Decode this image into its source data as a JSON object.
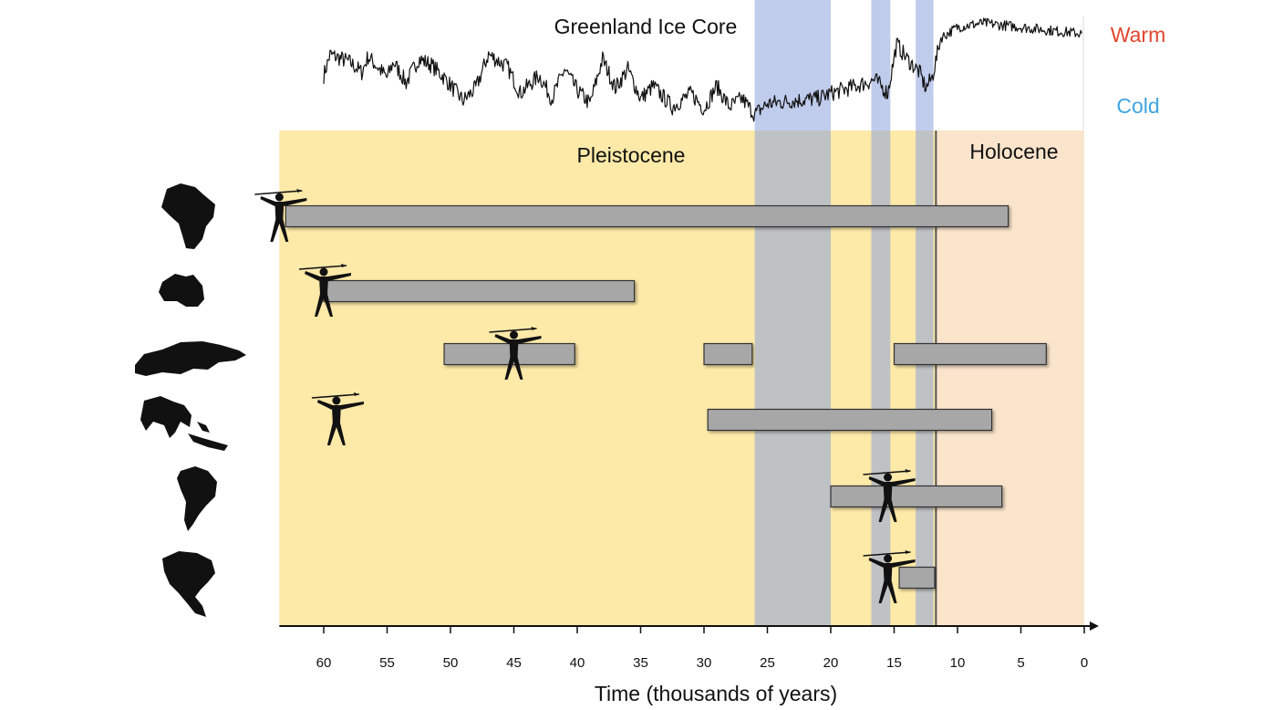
{
  "chart_data": {
    "type": "bar",
    "orientation": "horizontal-range",
    "ice_core_title": "Greenland Ice Core",
    "warm_label": "Warm",
    "cold_label": "Cold",
    "period_labels": {
      "pleistocene": "Pleistocene",
      "holocene": "Holocene"
    },
    "xlabel": "Time (thousands of years)",
    "xlim": [
      63.5,
      0
    ],
    "xticks": [
      60,
      55,
      50,
      45,
      40,
      35,
      30,
      25,
      20,
      15,
      10,
      5,
      0
    ],
    "x_reversed": true,
    "periods": [
      {
        "name": "Pleistocene",
        "start": 63.5,
        "end": 11.7
      },
      {
        "name": "Holocene",
        "start": 11.7,
        "end": 0
      }
    ],
    "cold_bands": [
      [
        26,
        20
      ],
      [
        16.8,
        15.3
      ],
      [
        13.3,
        11.9
      ]
    ],
    "continents": [
      {
        "icon": "africa-icon",
        "ranges": [
          [
            63,
            6
          ]
        ],
        "human_arrival": 63.5
      },
      {
        "icon": "australia-icon",
        "ranges": [
          [
            60,
            35.5
          ]
        ],
        "human_arrival": 60
      },
      {
        "icon": "eurasia-icon",
        "ranges": [
          [
            50.5,
            40.2
          ],
          [
            30,
            26.2
          ],
          [
            15,
            3
          ]
        ],
        "human_arrival": 45
      },
      {
        "icon": "south-asia-icon",
        "ranges": [
          [
            29.7,
            7.3
          ]
        ],
        "human_arrival": 59
      },
      {
        "icon": "south-america-icon",
        "ranges": [
          [
            20,
            6.5
          ]
        ],
        "human_arrival": 15.5
      },
      {
        "icon": "north-america-icon",
        "ranges": [
          [
            14.6,
            11.8
          ]
        ],
        "human_arrival": 15.5
      }
    ],
    "ice_core_anchors": [
      [
        60,
        0.42
      ],
      [
        59.5,
        0.62
      ],
      [
        58,
        0.55
      ],
      [
        57,
        0.45
      ],
      [
        56.5,
        0.6
      ],
      [
        55,
        0.4
      ],
      [
        54.5,
        0.55
      ],
      [
        53.5,
        0.35
      ],
      [
        52.5,
        0.58
      ],
      [
        51.5,
        0.52
      ],
      [
        50.5,
        0.4
      ],
      [
        49,
        0.18
      ],
      [
        48,
        0.3
      ],
      [
        47,
        0.62
      ],
      [
        45.5,
        0.5
      ],
      [
        44.5,
        0.25
      ],
      [
        43,
        0.42
      ],
      [
        42,
        0.2
      ],
      [
        41,
        0.48
      ],
      [
        40,
        0.28
      ],
      [
        39,
        0.15
      ],
      [
        38,
        0.58
      ],
      [
        37,
        0.3
      ],
      [
        36,
        0.48
      ],
      [
        35,
        0.2
      ],
      [
        34,
        0.32
      ],
      [
        32.5,
        0.12
      ],
      [
        31,
        0.25
      ],
      [
        30,
        0.1
      ],
      [
        29,
        0.32
      ],
      [
        28,
        0.12
      ],
      [
        27,
        0.2
      ],
      [
        26,
        0.05
      ],
      [
        25,
        0.15
      ],
      [
        23,
        0.18
      ],
      [
        21,
        0.2
      ],
      [
        20,
        0.25
      ],
      [
        18,
        0.32
      ],
      [
        16.5,
        0.38
      ],
      [
        15.5,
        0.25
      ],
      [
        14.8,
        0.72
      ],
      [
        14,
        0.58
      ],
      [
        13,
        0.45
      ],
      [
        12.5,
        0.3
      ],
      [
        12,
        0.4
      ],
      [
        11.3,
        0.78
      ],
      [
        10,
        0.88
      ],
      [
        8,
        0.92
      ],
      [
        5,
        0.88
      ],
      [
        2,
        0.84
      ],
      [
        0.2,
        0.82
      ]
    ]
  }
}
